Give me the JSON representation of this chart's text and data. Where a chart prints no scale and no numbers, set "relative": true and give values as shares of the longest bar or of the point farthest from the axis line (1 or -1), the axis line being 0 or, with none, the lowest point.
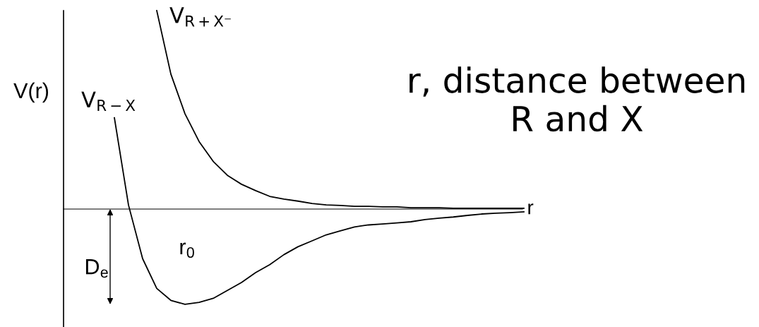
{
  "chart_data": {
    "type": "line",
    "relative": true,
    "xlabel": "r",
    "ylabel": "V(r)",
    "categories": [
      null,
      null,
      null,
      null,
      null,
      null,
      null,
      null,
      null,
      null,
      null,
      null,
      null,
      null,
      null,
      null,
      null,
      null,
      null,
      null,
      null,
      null,
      null,
      null,
      null,
      null,
      null,
      null,
      null,
      null
    ],
    "series": [
      {
        "name": "V$_{R−X}$",
        "color": "#000000",
        "values": [
          0.46,
          0.02,
          -0.25,
          -0.4,
          -0.46,
          -0.48,
          -0.47,
          -0.45,
          -0.41,
          -0.37,
          -0.32,
          -0.28,
          -0.23,
          -0.19,
          -0.16,
          -0.13,
          -0.11,
          -0.09,
          -0.08,
          -0.075,
          -0.07,
          -0.064,
          -0.053,
          -0.046,
          -0.04,
          -0.032,
          -0.025,
          -0.021,
          -0.018,
          -0.014
        ]
      },
      {
        "name": "V$_{R+X⁻}$",
        "color": "#000000",
        "values": [
          null,
          null,
          null,
          1,
          0.68,
          0.48,
          0.34,
          0.24,
          0.17,
          0.125,
          0.093,
          0.064,
          0.05,
          0.04,
          0.028,
          0.021,
          0.018,
          0.014,
          0.014,
          0.011,
          0.011,
          0.007,
          0.007,
          0.007,
          0.004,
          0.004,
          0.004,
          0.004,
          0.004,
          0.004
        ]
      }
    ],
    "annotations": [
      "r, distance between R and X",
      "r$_{0}$",
      "D$_{e}$"
    ],
    "legend": false,
    "marker": "none",
    "line_style": "solid"
  }
}
